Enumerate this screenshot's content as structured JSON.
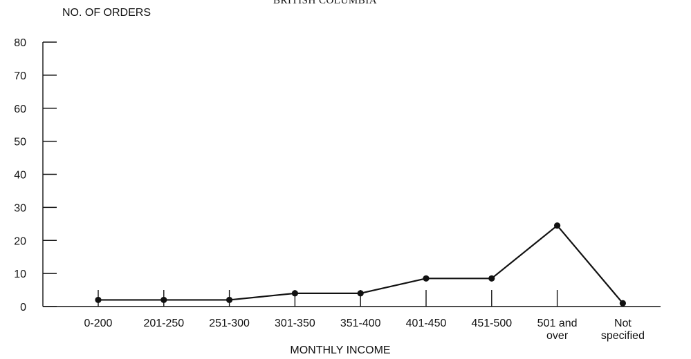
{
  "chart_data": {
    "type": "line",
    "title": "BRITISH COLUMBIA",
    "ylabel": "NO. OF ORDERS",
    "xlabel": "MONTHLY INCOME",
    "ylim": [
      0,
      80
    ],
    "yticks": [
      "0",
      "10",
      "20",
      "30",
      "40",
      "50",
      "60",
      "70",
      "80"
    ],
    "categories": [
      [
        "0-200"
      ],
      [
        "201-250"
      ],
      [
        "251-300"
      ],
      [
        "301-350"
      ],
      [
        "351-400"
      ],
      [
        "401-450"
      ],
      [
        "451-500"
      ],
      [
        "501 and",
        "over"
      ],
      [
        "Not",
        "specified"
      ]
    ],
    "values": [
      2,
      2,
      2,
      4,
      4,
      8.5,
      8.5,
      24.5,
      1
    ],
    "color": "#111111",
    "grid": false,
    "legend": "none"
  }
}
